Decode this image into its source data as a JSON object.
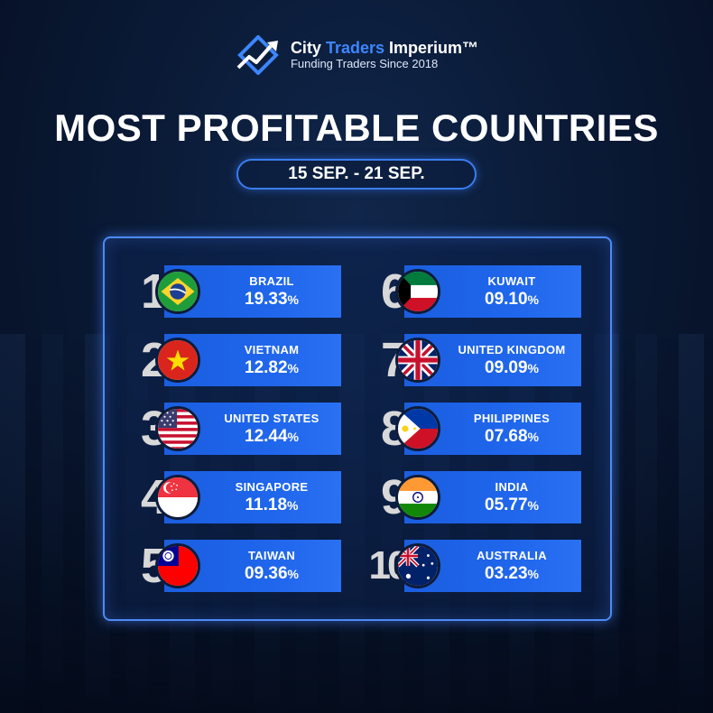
{
  "brand": {
    "name_city": "City",
    "name_traders": "Traders",
    "name_imperium": "Imperium™",
    "tagline": "Funding Traders Since 2018"
  },
  "title": "MOST PROFITABLE COUNTRIES",
  "date_range": "15 SEP. - 21 SEP.",
  "colors": {
    "accent": "#1f66ec",
    "brand_blue": "#3d86ff",
    "background": "#0a1a36"
  },
  "rankings": [
    {
      "rank": "1",
      "country": "BRAZIL",
      "value": "19.33",
      "unit": "%",
      "flag": "brazil-flag"
    },
    {
      "rank": "2",
      "country": "VIETNAM",
      "value": "12.82",
      "unit": "%",
      "flag": "vietnam-flag"
    },
    {
      "rank": "3",
      "country": "UNITED STATES",
      "value": "12.44",
      "unit": "%",
      "flag": "usa-flag"
    },
    {
      "rank": "4",
      "country": "SINGAPORE",
      "value": "11.18",
      "unit": "%",
      "flag": "singapore-flag"
    },
    {
      "rank": "5",
      "country": "TAIWAN",
      "value": "09.36",
      "unit": "%",
      "flag": "taiwan-flag"
    },
    {
      "rank": "6",
      "country": "KUWAIT",
      "value": "09.10",
      "unit": "%",
      "flag": "kuwait-flag"
    },
    {
      "rank": "7",
      "country": "UNITED KINGDOM",
      "value": "09.09",
      "unit": "%",
      "flag": "uk-flag"
    },
    {
      "rank": "8",
      "country": "PHILIPPINES",
      "value": "07.68",
      "unit": "%",
      "flag": "philippines-flag"
    },
    {
      "rank": "9",
      "country": "INDIA",
      "value": "05.77",
      "unit": "%",
      "flag": "india-flag"
    },
    {
      "rank": "10",
      "country": "AUSTRALIA",
      "value": "03.23",
      "unit": "%",
      "flag": "australia-flag"
    }
  ]
}
